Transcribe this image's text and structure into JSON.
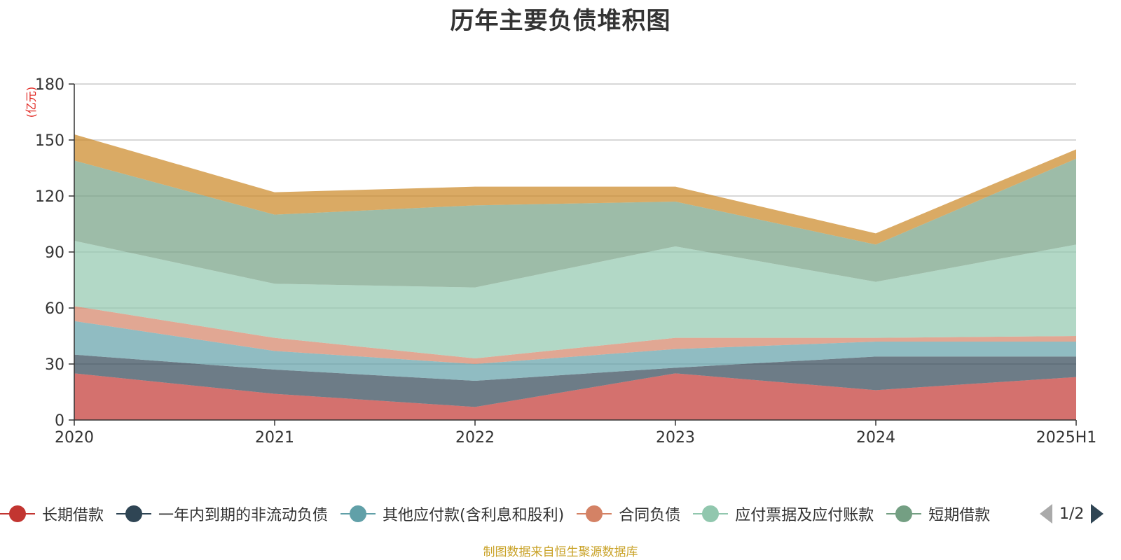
{
  "title": "历年主要负债堆积图",
  "source_note": "制图数据来自恒生聚源数据库",
  "legend_pager": {
    "text": "1/2"
  },
  "chart_data": {
    "type": "area",
    "stacked": true,
    "title": "历年主要负债堆积图",
    "ylabel": "(亿元)",
    "xlabel": "",
    "ylim": [
      0,
      180
    ],
    "yticks": [
      0,
      30,
      60,
      90,
      120,
      150,
      180
    ],
    "grid": true,
    "legend_position": "bottom",
    "categories": [
      "2020",
      "2021",
      "2022",
      "2023",
      "2024",
      "2025H1"
    ],
    "series": [
      {
        "name": "长期借款",
        "color": "#c23531",
        "values": [
          25,
          14,
          7,
          25,
          16,
          23
        ]
      },
      {
        "name": "一年内到期的非流动负债",
        "color": "#2f4554",
        "values": [
          10,
          13,
          14,
          3,
          18,
          11
        ]
      },
      {
        "name": "其他应付款(含利息和股利)",
        "color": "#61a0a8",
        "values": [
          18,
          10,
          9,
          10,
          8,
          8
        ]
      },
      {
        "name": "合同负债",
        "color": "#d48265",
        "values": [
          8,
          7,
          3,
          6,
          2,
          3
        ]
      },
      {
        "name": "应付票据及应付账款",
        "color": "#91c7ae",
        "values": [
          35,
          29,
          38,
          49,
          30,
          49
        ]
      },
      {
        "name": "短期借款",
        "color": "#749f83",
        "values": [
          43,
          37,
          44,
          24,
          20,
          46
        ]
      },
      {
        "color": "#ca8622",
        "values": [
          14,
          12,
          10,
          8,
          6,
          5
        ]
      }
    ]
  }
}
